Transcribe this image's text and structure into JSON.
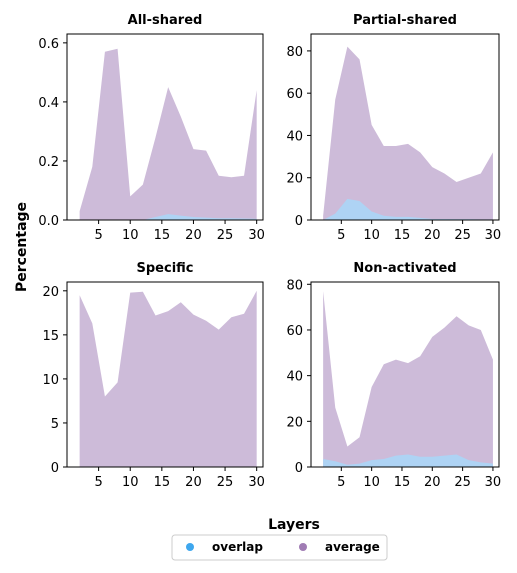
{
  "figure": {
    "ylabel": "Percentage",
    "xlabel": "Layers",
    "legend": [
      {
        "name": "overlap",
        "color": "#3ea7ee"
      },
      {
        "name": "average",
        "color": "#a07cb4"
      }
    ],
    "legend_position": "bottom-center"
  },
  "chart_data": [
    {
      "type": "area",
      "title": "All-shared",
      "xlim": [
        0,
        31
      ],
      "ylim": [
        0,
        0.63
      ],
      "xticks": [
        5,
        10,
        15,
        20,
        25,
        30
      ],
      "yticks": [
        0.0,
        0.2,
        0.4,
        0.6
      ],
      "ytick_labels": [
        "0.0",
        "0.2",
        "0.4",
        "0.6"
      ],
      "x": [
        2,
        4,
        6,
        8,
        10,
        12,
        14,
        16,
        18,
        20,
        22,
        24,
        26,
        28,
        30
      ],
      "series": [
        {
          "name": "average",
          "color": "#cdbbd9",
          "values": [
            0.03,
            0.18,
            0.57,
            0.58,
            0.08,
            0.12,
            0.28,
            0.45,
            0.35,
            0.24,
            0.235,
            0.15,
            0.145,
            0.15,
            0.44
          ]
        },
        {
          "name": "overlap",
          "color": "#aed3f4",
          "values": [
            0.0,
            0.0,
            0.0,
            0.0,
            0.0,
            0.0,
            0.01,
            0.02,
            0.015,
            0.01,
            0.008,
            0.006,
            0.006,
            0.005,
            0.004
          ]
        }
      ]
    },
    {
      "type": "area",
      "title": "Partial-shared",
      "xlim": [
        0,
        31
      ],
      "ylim": [
        0,
        88
      ],
      "xticks": [
        5,
        10,
        15,
        20,
        25,
        30
      ],
      "yticks": [
        0,
        20,
        40,
        60,
        80
      ],
      "ytick_labels": [
        "0",
        "20",
        "40",
        "60",
        "80"
      ],
      "x": [
        2,
        4,
        6,
        8,
        10,
        12,
        14,
        16,
        18,
        20,
        22,
        24,
        26,
        28,
        30
      ],
      "series": [
        {
          "name": "average",
          "color": "#cdbbd9",
          "values": [
            2,
            57,
            82,
            76,
            45,
            35,
            35,
            36,
            32,
            25,
            22,
            18,
            20,
            22,
            32
          ]
        },
        {
          "name": "overlap",
          "color": "#aed3f4",
          "values": [
            0,
            3,
            10,
            9,
            4,
            2,
            1.5,
            1.5,
            1,
            0.5,
            0.5,
            0.4,
            0.4,
            0.3,
            0.3
          ]
        }
      ]
    },
    {
      "type": "area",
      "title": "Specific",
      "xlim": [
        0,
        31
      ],
      "ylim": [
        0,
        21
      ],
      "xticks": [
        5,
        10,
        15,
        20,
        25,
        30
      ],
      "yticks": [
        0,
        5,
        10,
        15,
        20
      ],
      "ytick_labels": [
        "0",
        "5",
        "10",
        "15",
        "20"
      ],
      "x": [
        2,
        4,
        6,
        8,
        10,
        12,
        14,
        16,
        18,
        20,
        22,
        24,
        26,
        28,
        30
      ],
      "series": [
        {
          "name": "average",
          "color": "#cdbbd9",
          "values": [
            19.5,
            16.3,
            8.0,
            9.6,
            19.8,
            19.9,
            17.2,
            17.7,
            18.7,
            17.3,
            16.6,
            15.6,
            17.0,
            17.4,
            20.0
          ]
        }
      ]
    },
    {
      "type": "area",
      "title": "Non-activated",
      "xlim": [
        0,
        31
      ],
      "ylim": [
        0,
        81
      ],
      "xticks": [
        5,
        10,
        15,
        20,
        25,
        30
      ],
      "yticks": [
        0,
        20,
        40,
        60,
        80
      ],
      "ytick_labels": [
        "0",
        "20",
        "40",
        "60",
        "80"
      ],
      "x": [
        2,
        4,
        6,
        8,
        10,
        12,
        14,
        16,
        18,
        20,
        22,
        24,
        26,
        28,
        30
      ],
      "series": [
        {
          "name": "average",
          "color": "#cdbbd9",
          "values": [
            77,
            26,
            9,
            13,
            35,
            45,
            47,
            45.5,
            48.5,
            57,
            61,
            66,
            62,
            60,
            47
          ]
        },
        {
          "name": "overlap",
          "color": "#aed3f4",
          "values": [
            3.5,
            2.5,
            1,
            1.5,
            3,
            3.5,
            5,
            5.5,
            4.5,
            4.5,
            5,
            5.5,
            3,
            2,
            1.5
          ]
        }
      ]
    }
  ]
}
